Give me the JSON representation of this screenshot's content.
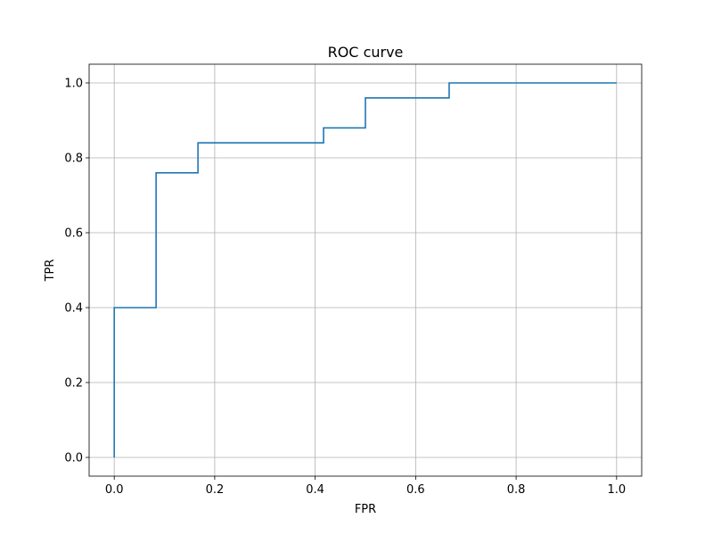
{
  "chart_data": {
    "type": "line",
    "title": "ROC curve",
    "xlabel": "FPR",
    "ylabel": "TPR",
    "xlim": [
      -0.05,
      1.05
    ],
    "ylim": [
      -0.05,
      1.05
    ],
    "grid": true,
    "xticks": [
      0.0,
      0.2,
      0.4,
      0.6,
      0.8,
      1.0
    ],
    "xtick_labels": [
      "0.0",
      "0.2",
      "0.4",
      "0.6",
      "0.8",
      "1.0"
    ],
    "yticks": [
      0.0,
      0.2,
      0.4,
      0.6,
      0.8,
      1.0
    ],
    "ytick_labels": [
      "0.0",
      "0.2",
      "0.4",
      "0.6",
      "0.8",
      "1.0"
    ],
    "series": [
      {
        "color": "#1f77b4",
        "x": [
          0.0,
          0.0,
          0.0833,
          0.0833,
          0.1667,
          0.1667,
          0.4167,
          0.4167,
          0.5,
          0.5,
          0.6667,
          0.6667,
          1.0
        ],
        "y": [
          0.0,
          0.4,
          0.4,
          0.76,
          0.76,
          0.84,
          0.84,
          0.88,
          0.88,
          0.96,
          0.96,
          1.0,
          1.0
        ]
      }
    ]
  }
}
